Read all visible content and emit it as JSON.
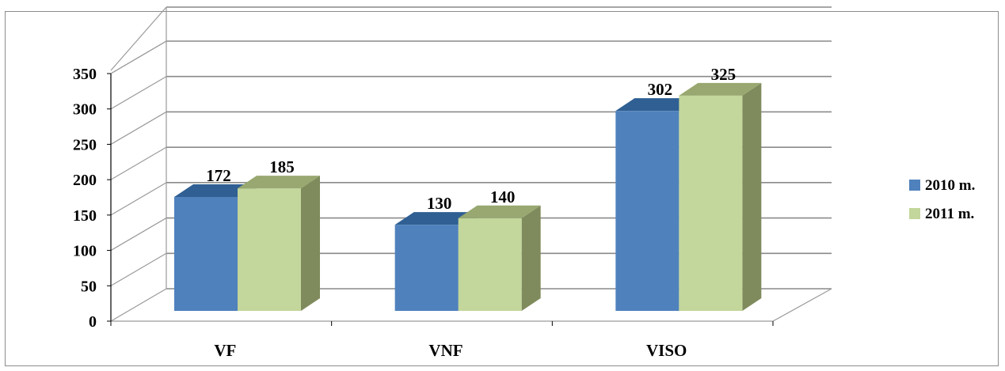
{
  "chart_data": {
    "type": "bar",
    "variant": "3d-clustered-column",
    "title": "",
    "xlabel": "",
    "ylabel": "",
    "categories": [
      "VF",
      "VNF",
      "VISO"
    ],
    "series": [
      {
        "name": "2010 m.",
        "values": [
          172,
          130,
          302
        ],
        "color": "#4f81bd",
        "top_color": "#2f5f93",
        "side_color": "#3a6aa0"
      },
      {
        "name": "2011 m.",
        "values": [
          185,
          140,
          325
        ],
        "color": "#c3d69b",
        "top_color": "#98a870",
        "side_color": "#7f8b5c"
      }
    ],
    "ylim": [
      0,
      350
    ],
    "yticks": [
      0,
      50,
      100,
      150,
      200,
      250,
      300,
      350
    ],
    "grid": true,
    "data_labels": true,
    "legend": "right"
  }
}
